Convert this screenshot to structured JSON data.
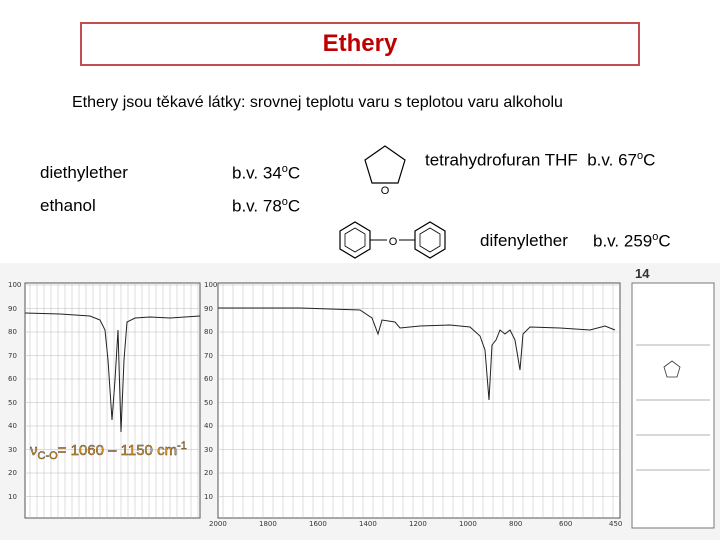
{
  "header": {
    "title": "Ethery"
  },
  "intro": "Ethery jsou těkavé látky: srovnej teplotu varu s teplotou varu alkoholu",
  "compounds": [
    {
      "name": "diethylether",
      "bp": {
        "prefix": "b.v. 34",
        "sup": "o",
        "suffix": "C"
      }
    },
    {
      "name": "ethanol",
      "bp": {
        "prefix": "b.v. 78",
        "sup": "o",
        "suffix": "C"
      }
    },
    {
      "name": "tetrahydrofuran THF",
      "bp": {
        "prefix": "b.v. 67",
        "sup": "o",
        "suffix": "C"
      },
      "atom": "O"
    },
    {
      "name": "difenylether",
      "bp": {
        "prefix": "b.v. 259",
        "sup": "o",
        "suffix": "C"
      },
      "atom": "O"
    }
  ],
  "spectrum": {
    "page_number": "14",
    "annotation": {
      "symbol": "ν",
      "sub": "C-O",
      "text": "= 1060 – 1150 cm",
      "sup": "-1"
    },
    "yticks": [
      "100",
      "90",
      "80",
      "70",
      "60",
      "50",
      "40",
      "30",
      "20",
      "10"
    ],
    "xticks": [
      "2000",
      "1800",
      "1600",
      "1400",
      "1200",
      "1000",
      "800",
      "600",
      "450"
    ]
  }
}
